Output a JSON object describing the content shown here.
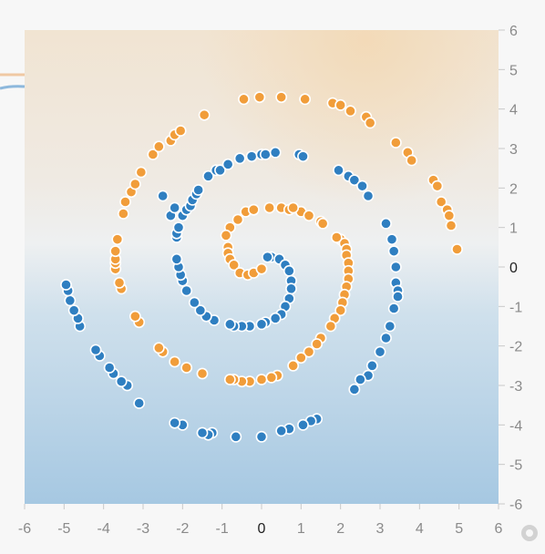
{
  "chart_data": {
    "type": "scatter",
    "title": "",
    "xlabel": "",
    "ylabel": "",
    "xlim": [
      -6,
      6
    ],
    "ylim": [
      -6,
      6
    ],
    "x_ticks": [
      "-6",
      "-5",
      "-4",
      "-3",
      "-2",
      "-1",
      "0",
      "1",
      "2",
      "3",
      "4",
      "5",
      "6"
    ],
    "y_ticks": [
      "6",
      "5",
      "4",
      "3",
      "2",
      "1",
      "0",
      "-1",
      "-2",
      "-3",
      "-4",
      "-5",
      "-6"
    ],
    "colors": {
      "orange": "#f19d3a",
      "blue": "#2f7fc1",
      "background_top": "#f0e6d9",
      "background_bottom": "#a9cbe3"
    },
    "series": [
      {
        "color": "orange",
        "points": [
          [
            0.2,
            1.5
          ],
          [
            0.5,
            1.5
          ],
          [
            0.7,
            1.45
          ],
          [
            1.0,
            1.4
          ],
          [
            1.2,
            1.3
          ],
          [
            1.5,
            1.15
          ],
          [
            -0.4,
            1.4
          ],
          [
            -0.2,
            1.45
          ],
          [
            -0.6,
            1.2
          ],
          [
            -0.8,
            1.0
          ],
          [
            -0.9,
            0.8
          ],
          [
            -0.85,
            0.5
          ],
          [
            -0.85,
            0.35
          ],
          [
            -0.8,
            0.2
          ],
          [
            -0.7,
            0.05
          ],
          [
            -0.55,
            -0.15
          ],
          [
            -0.35,
            -0.2
          ],
          [
            -0.2,
            -0.15
          ],
          [
            0.0,
            -0.05
          ],
          [
            2.0,
            0.7
          ],
          [
            2.1,
            0.6
          ],
          [
            2.15,
            0.45
          ],
          [
            2.15,
            0.3
          ],
          [
            2.2,
            0.1
          ],
          [
            2.2,
            -0.1
          ],
          [
            2.2,
            -0.3
          ],
          [
            2.15,
            -0.5
          ],
          [
            2.1,
            -0.7
          ],
          [
            2.05,
            -0.9
          ],
          [
            2.0,
            -1.1
          ],
          [
            1.85,
            -1.3
          ],
          [
            1.75,
            -1.5
          ],
          [
            1.5,
            -1.8
          ],
          [
            1.4,
            -1.95
          ],
          [
            1.2,
            -2.15
          ],
          [
            1.0,
            -2.3
          ],
          [
            0.8,
            -2.5
          ],
          [
            0.4,
            -2.75
          ],
          [
            0.25,
            -2.8
          ],
          [
            0.0,
            -2.85
          ],
          [
            -0.3,
            -2.9
          ],
          [
            -0.5,
            -2.9
          ],
          [
            -0.7,
            -2.85
          ],
          [
            -0.8,
            -2.85
          ],
          [
            -1.5,
            -2.7
          ],
          [
            -1.9,
            -2.55
          ],
          [
            -2.2,
            -2.4
          ],
          [
            -2.5,
            -2.15
          ],
          [
            -2.6,
            -2.05
          ],
          [
            -3.1,
            -1.4
          ],
          [
            -3.2,
            -1.25
          ],
          [
            -3.55,
            -0.55
          ],
          [
            -3.6,
            -0.4
          ],
          [
            -3.7,
            -0.05
          ],
          [
            -3.7,
            0.1
          ],
          [
            -3.7,
            0.2
          ],
          [
            -3.7,
            0.4
          ],
          [
            -3.65,
            0.7
          ],
          [
            -3.5,
            1.35
          ],
          [
            -3.45,
            1.65
          ],
          [
            -3.3,
            1.9
          ],
          [
            -3.2,
            2.1
          ],
          [
            -3.05,
            2.4
          ],
          [
            -2.75,
            2.85
          ],
          [
            -2.6,
            3.05
          ],
          [
            -2.3,
            3.2
          ],
          [
            -2.2,
            3.35
          ],
          [
            -2.05,
            3.45
          ],
          [
            -1.45,
            3.85
          ],
          [
            -0.45,
            4.25
          ],
          [
            -0.05,
            4.3
          ],
          [
            0.5,
            4.3
          ],
          [
            1.1,
            4.25
          ],
          [
            1.8,
            4.15
          ],
          [
            2.0,
            4.1
          ],
          [
            2.25,
            3.95
          ],
          [
            2.65,
            3.8
          ],
          [
            2.75,
            3.65
          ],
          [
            3.4,
            3.15
          ],
          [
            3.7,
            2.9
          ],
          [
            3.8,
            2.7
          ],
          [
            4.35,
            2.2
          ],
          [
            4.45,
            2.05
          ],
          [
            4.55,
            1.65
          ],
          [
            4.7,
            1.45
          ],
          [
            4.75,
            1.3
          ],
          [
            4.8,
            1.05
          ],
          [
            4.95,
            0.45
          ],
          [
            1.55,
            1.1
          ],
          [
            0.8,
            1.5
          ],
          [
            1.9,
            0.75
          ]
        ]
      },
      {
        "color": "blue",
        "points": [
          [
            0.25,
            0.25
          ],
          [
            0.15,
            0.25
          ],
          [
            0.45,
            0.2
          ],
          [
            0.6,
            0.05
          ],
          [
            0.7,
            -0.1
          ],
          [
            0.75,
            -0.35
          ],
          [
            0.75,
            -0.55
          ],
          [
            0.7,
            -0.8
          ],
          [
            0.6,
            -1.0
          ],
          [
            0.5,
            -1.2
          ],
          [
            0.35,
            -1.3
          ],
          [
            0.1,
            -1.4
          ],
          [
            0.0,
            -1.45
          ],
          [
            -0.3,
            -1.5
          ],
          [
            -0.5,
            -1.5
          ],
          [
            -0.7,
            -1.5
          ],
          [
            -0.8,
            -1.45
          ],
          [
            -1.2,
            -1.35
          ],
          [
            -1.4,
            -1.25
          ],
          [
            -1.55,
            -1.1
          ],
          [
            -1.7,
            -0.9
          ],
          [
            -1.9,
            -0.6
          ],
          [
            -2.0,
            -0.35
          ],
          [
            -2.05,
            -0.2
          ],
          [
            -2.1,
            0.0
          ],
          [
            -2.15,
            0.2
          ],
          [
            -2.15,
            0.75
          ],
          [
            -2.15,
            0.85
          ],
          [
            -2.1,
            1.0
          ],
          [
            -2.0,
            1.3
          ],
          [
            -1.9,
            1.45
          ],
          [
            -1.8,
            1.55
          ],
          [
            -1.75,
            1.7
          ],
          [
            -1.65,
            1.85
          ],
          [
            -1.6,
            1.95
          ],
          [
            -1.35,
            2.3
          ],
          [
            -1.15,
            2.45
          ],
          [
            -1.05,
            2.45
          ],
          [
            -0.85,
            2.6
          ],
          [
            -0.55,
            2.75
          ],
          [
            -0.25,
            2.8
          ],
          [
            0.0,
            2.85
          ],
          [
            0.1,
            2.85
          ],
          [
            0.35,
            2.9
          ],
          [
            0.95,
            2.85
          ],
          [
            1.05,
            2.8
          ],
          [
            1.95,
            2.45
          ],
          [
            2.2,
            2.3
          ],
          [
            2.35,
            2.2
          ],
          [
            2.55,
            2.05
          ],
          [
            2.7,
            1.8
          ],
          [
            3.15,
            1.1
          ],
          [
            3.3,
            0.7
          ],
          [
            3.35,
            0.4
          ],
          [
            3.4,
            0.0
          ],
          [
            3.4,
            -0.4
          ],
          [
            3.45,
            -0.6
          ],
          [
            3.45,
            -0.75
          ],
          [
            3.35,
            -1.05
          ],
          [
            3.25,
            -1.5
          ],
          [
            3.15,
            -1.8
          ],
          [
            3.0,
            -2.15
          ],
          [
            2.8,
            -2.5
          ],
          [
            2.7,
            -2.75
          ],
          [
            2.5,
            -2.85
          ],
          [
            2.35,
            -3.1
          ],
          [
            1.4,
            -3.85
          ],
          [
            1.25,
            -3.9
          ],
          [
            1.05,
            -4.0
          ],
          [
            0.7,
            -4.1
          ],
          [
            0.5,
            -4.15
          ],
          [
            0.0,
            -4.3
          ],
          [
            -0.65,
            -4.3
          ],
          [
            -1.25,
            -4.2
          ],
          [
            -1.35,
            -4.25
          ],
          [
            -1.5,
            -4.2
          ],
          [
            -2.0,
            -4.0
          ],
          [
            -2.2,
            -3.95
          ],
          [
            -3.1,
            -3.45
          ],
          [
            -3.4,
            -3.0
          ],
          [
            -3.55,
            -2.9
          ],
          [
            -3.75,
            -2.7
          ],
          [
            -3.85,
            -2.55
          ],
          [
            -4.1,
            -2.25
          ],
          [
            -4.2,
            -2.1
          ],
          [
            -4.6,
            -1.5
          ],
          [
            -4.65,
            -1.3
          ],
          [
            -4.75,
            -1.1
          ],
          [
            -4.85,
            -0.85
          ],
          [
            -4.9,
            -0.6
          ],
          [
            -4.95,
            -0.45
          ],
          [
            -2.3,
            1.3
          ],
          [
            -2.2,
            1.5
          ],
          [
            -2.5,
            1.8
          ]
        ]
      }
    ]
  }
}
